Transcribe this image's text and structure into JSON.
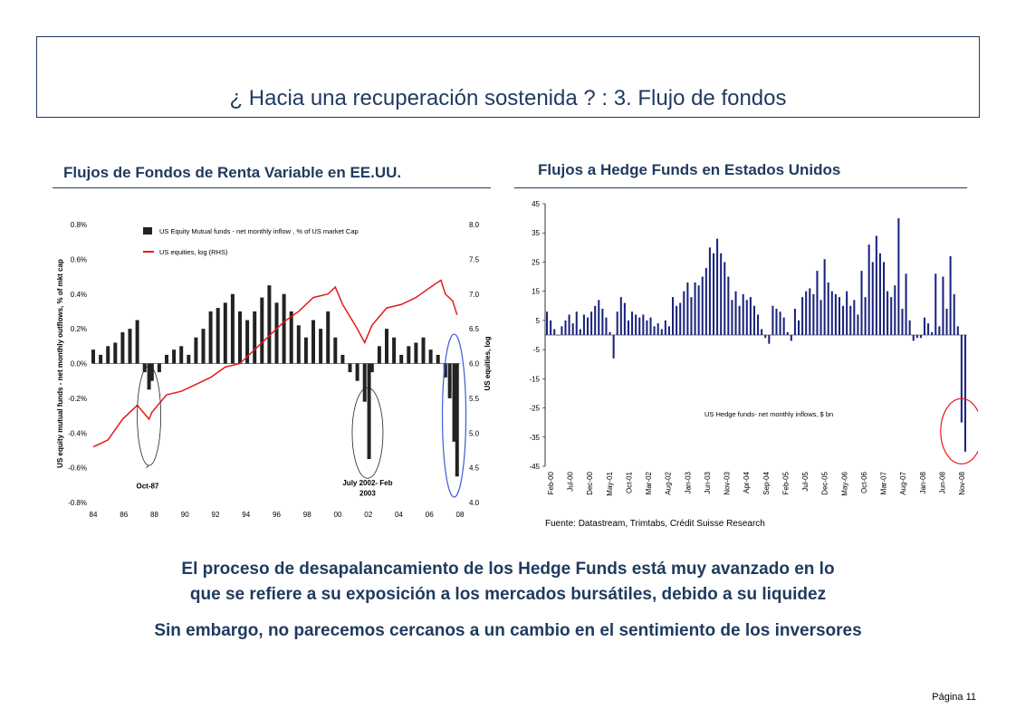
{
  "header": {
    "title": "¿ Hacia una recuperación sostenida ? : 3. Flujo de fondos"
  },
  "left_chart_title": "Flujos de Fondos de Renta Variable en EE.UU.",
  "right_chart_title": "Flujos a Hedge Funds en Estados Unidos",
  "source": "Fuente: Datastream, Trimtabs, Crédit Suisse Research",
  "body": {
    "line1": "El proceso de desapalancamiento de los Hedge Funds está muy avanzado en lo",
    "line2": "que se refiere a su exposición a los mercados bursátiles, debido a su liquidez",
    "line3": "Sin embargo, no parecemos cercanos a un cambio en el sentimiento de los inversores"
  },
  "footer": {
    "page": "Página 11"
  },
  "colors": {
    "navy": "#1f3a5f",
    "bar": "#222222",
    "red": "#e31b1b",
    "hf_bar": "#1a237e",
    "blue_ellipse": "#3c5ad7"
  },
  "chart_data": [
    {
      "type": "bar",
      "ylabel": "US equity mutual funds - net monthly outflows, % of mkt cap",
      "y2label": "US equities, log",
      "ylim": [
        -0.8,
        0.8
      ],
      "y2lim": [
        4.0,
        8.0
      ],
      "yticks": [
        "0.8%",
        "0.6%",
        "0.4%",
        "0.2%",
        "0.0%",
        "-0.2%",
        "-0.4%",
        "-0.6%",
        "-0.8%"
      ],
      "y2ticks": [
        "8.0",
        "7.5",
        "7.0",
        "6.5",
        "6.0",
        "5.5",
        "5.0",
        "4.5",
        "4.0"
      ],
      "xticks": [
        "84",
        "86",
        "88",
        "90",
        "92",
        "94",
        "96",
        "98",
        "00",
        "02",
        "04",
        "06",
        "08"
      ],
      "xlim": [
        1984,
        2009
      ],
      "legend": [
        "US Equity Mutual funds - net monthly inflow , % of US market Cap",
        "US equities, log (RHS)"
      ],
      "annotations": [
        "Oct-87",
        "July 2002- Feb 2003"
      ],
      "series": [
        {
          "name": "US Equity Mutual funds - net monthly inflow , % of US market Cap",
          "kind": "bar",
          "x": [
            1984.0,
            1984.5,
            1985.0,
            1985.5,
            1986.0,
            1986.5,
            1987.0,
            1987.5,
            1987.8,
            1988.0,
            1988.5,
            1989.0,
            1989.5,
            1990.0,
            1990.5,
            1991.0,
            1991.5,
            1992.0,
            1992.5,
            1993.0,
            1993.5,
            1994.0,
            1994.5,
            1995.0,
            1995.5,
            1996.0,
            1996.5,
            1997.0,
            1997.5,
            1998.0,
            1998.5,
            1999.0,
            1999.5,
            2000.0,
            2000.5,
            2001.0,
            2001.5,
            2002.0,
            2002.5,
            2002.8,
            2003.0,
            2003.5,
            2004.0,
            2004.5,
            2005.0,
            2005.5,
            2006.0,
            2006.5,
            2007.0,
            2007.5,
            2008.0,
            2008.3,
            2008.6,
            2008.8
          ],
          "values": [
            0.08,
            0.05,
            0.1,
            0.12,
            0.18,
            0.2,
            0.25,
            -0.05,
            -0.15,
            -0.1,
            -0.05,
            0.05,
            0.08,
            0.1,
            0.05,
            0.15,
            0.2,
            0.3,
            0.32,
            0.35,
            0.4,
            0.3,
            0.25,
            0.3,
            0.38,
            0.45,
            0.35,
            0.4,
            0.3,
            0.22,
            0.15,
            0.25,
            0.2,
            0.3,
            0.15,
            0.05,
            -0.05,
            -0.1,
            -0.22,
            -0.55,
            -0.05,
            0.1,
            0.2,
            0.15,
            0.05,
            0.1,
            0.12,
            0.15,
            0.08,
            0.05,
            -0.08,
            -0.2,
            -0.45,
            -0.65
          ]
        },
        {
          "name": "US equities, log (RHS)",
          "kind": "line",
          "x": [
            1984,
            1985,
            1986,
            1987,
            1987.8,
            1988,
            1989,
            1990,
            1991,
            1992,
            1993,
            1994,
            1995,
            1996,
            1997,
            1998,
            1999,
            2000,
            2000.5,
            2001,
            2002,
            2002.5,
            2003,
            2004,
            2005,
            2006,
            2007,
            2007.7,
            2008,
            2008.5,
            2008.8
          ],
          "values": [
            4.8,
            4.9,
            5.2,
            5.4,
            5.2,
            5.3,
            5.55,
            5.6,
            5.7,
            5.8,
            5.95,
            6.0,
            6.2,
            6.4,
            6.6,
            6.75,
            6.95,
            7.0,
            7.1,
            6.85,
            6.5,
            6.3,
            6.55,
            6.8,
            6.85,
            6.95,
            7.1,
            7.2,
            7.0,
            6.9,
            6.7
          ]
        }
      ]
    },
    {
      "type": "bar",
      "title": "US Hedge funds- net monthly inflows, $ bn",
      "ylim": [
        -45,
        45
      ],
      "yticks": [
        "45",
        "35",
        "25",
        "15",
        "5",
        "-5",
        "-15",
        "-25",
        "-35",
        "-45"
      ],
      "xticks": [
        "Feb-00",
        "Jul-00",
        "Dec-00",
        "May-01",
        "Oct-01",
        "Mar-02",
        "Aug-02",
        "Jan-03",
        "Jun-03",
        "Nov-03",
        "Apr-04",
        "Sep-04",
        "Feb-05",
        "Jul-05",
        "Dec-05",
        "May-06",
        "Oct-06",
        "Mar-07",
        "Aug-07",
        "Jan-08",
        "Jun-08",
        "Nov-08"
      ],
      "values": [
        8,
        5,
        2,
        0,
        3,
        5,
        7,
        4,
        8,
        2,
        7,
        6,
        8,
        10,
        12,
        9,
        6,
        1,
        -8,
        8,
        13,
        11,
        5,
        8,
        7,
        6,
        7,
        5,
        6,
        3,
        4,
        2,
        5,
        3,
        13,
        10,
        11,
        15,
        18,
        13,
        18,
        17,
        20,
        23,
        30,
        28,
        33,
        28,
        25,
        20,
        12,
        15,
        10,
        14,
        12,
        13,
        10,
        7,
        2,
        -1,
        -3,
        10,
        9,
        8,
        6,
        1,
        -2,
        9,
        5,
        13,
        15,
        16,
        14,
        22,
        12,
        26,
        18,
        15,
        14,
        13,
        10,
        15,
        10,
        12,
        7,
        22,
        13,
        31,
        25,
        34,
        28,
        25,
        15,
        13,
        17,
        40,
        9,
        21,
        5,
        -2,
        -1,
        -1,
        6,
        4,
        1,
        21,
        3,
        20,
        9,
        27,
        14,
        3,
        -30,
        -40
      ]
    }
  ]
}
